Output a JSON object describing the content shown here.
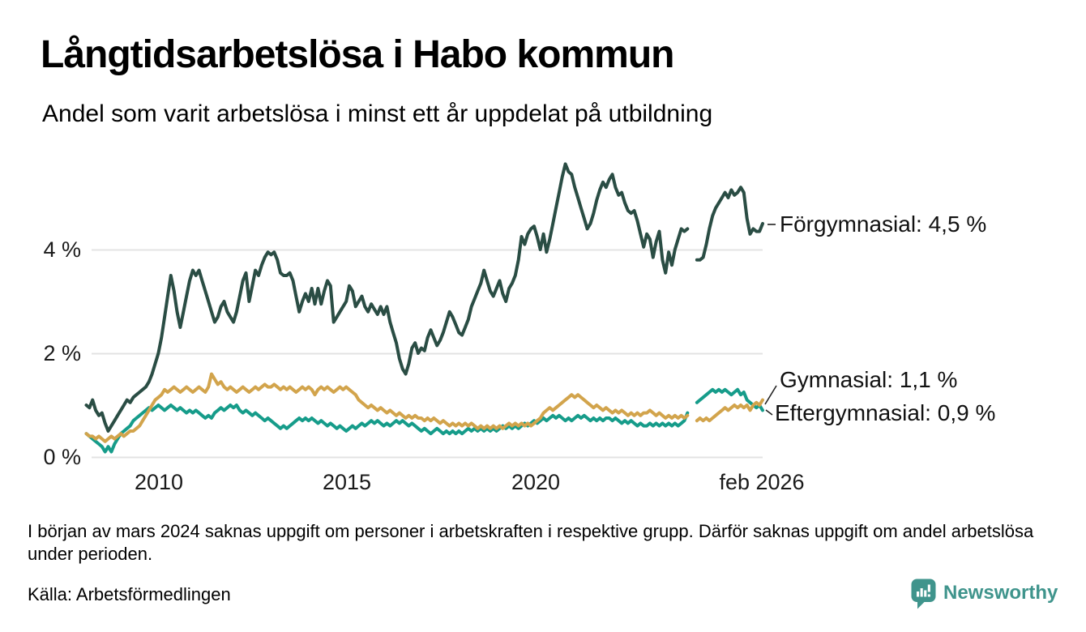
{
  "header": {
    "title": "Långtidsarbetslösa i Habo kommun",
    "subtitle": "Andel som varit arbetslösa i minst ett år uppdelat på utbildning"
  },
  "chart_data": {
    "type": "line",
    "title": "Långtidsarbetslösa i Habo kommun",
    "subtitle": "Andel som varit arbetslösa i minst ett år uppdelat på utbildning",
    "unit": "%",
    "x_unit": "month",
    "x_start": "2008-02",
    "x_end": "2026-02",
    "x_range": [
      2008.0833,
      2026.0833
    ],
    "x_step_months": 1,
    "ylim": [
      0,
      5.8
    ],
    "grid": "horizontal-only",
    "gap_note": "No data for March–April 2024",
    "y_ticks": [
      {
        "value": 4,
        "label": "4 %"
      },
      {
        "value": 2,
        "label": "2 %"
      },
      {
        "value": 0,
        "label": "0 %"
      }
    ],
    "x_ticks": [
      {
        "value": 2010,
        "label": "2010"
      },
      {
        "value": 2015,
        "label": "2015"
      },
      {
        "value": 2020,
        "label": "2020"
      },
      {
        "value": 2026.0833,
        "label": "feb 2026"
      }
    ],
    "series": [
      {
        "id": "eftergymnasial",
        "name": "Eftergymnasial",
        "color": "#169c8a",
        "width": 4,
        "end_label": "Eftergymnasial: 0,9 %",
        "end_value": 0.9,
        "values": [
          0.45,
          0.4,
          0.35,
          0.3,
          0.25,
          0.2,
          0.1,
          0.2,
          0.1,
          0.25,
          0.35,
          0.45,
          0.5,
          0.55,
          0.6,
          0.7,
          0.75,
          0.8,
          0.85,
          0.9,
          0.95,
          0.9,
          0.95,
          1.0,
          0.95,
          0.9,
          0.95,
          1.0,
          0.95,
          0.9,
          0.95,
          0.9,
          0.85,
          0.9,
          0.85,
          0.9,
          0.85,
          0.8,
          0.75,
          0.8,
          0.75,
          0.85,
          0.9,
          0.95,
          0.9,
          0.95,
          1.0,
          0.95,
          1.0,
          0.9,
          0.85,
          0.9,
          0.85,
          0.8,
          0.85,
          0.8,
          0.75,
          0.7,
          0.75,
          0.7,
          0.65,
          0.6,
          0.55,
          0.6,
          0.55,
          0.6,
          0.65,
          0.7,
          0.75,
          0.7,
          0.75,
          0.7,
          0.75,
          0.7,
          0.65,
          0.7,
          0.65,
          0.6,
          0.65,
          0.6,
          0.55,
          0.6,
          0.55,
          0.5,
          0.55,
          0.6,
          0.55,
          0.6,
          0.65,
          0.6,
          0.65,
          0.7,
          0.65,
          0.7,
          0.65,
          0.6,
          0.65,
          0.6,
          0.65,
          0.7,
          0.65,
          0.7,
          0.65,
          0.6,
          0.65,
          0.6,
          0.55,
          0.5,
          0.55,
          0.5,
          0.45,
          0.5,
          0.55,
          0.5,
          0.45,
          0.5,
          0.45,
          0.5,
          0.45,
          0.5,
          0.45,
          0.5,
          0.55,
          0.5,
          0.55,
          0.5,
          0.55,
          0.5,
          0.55,
          0.5,
          0.55,
          0.5,
          0.55,
          0.6,
          0.55,
          0.6,
          0.55,
          0.6,
          0.55,
          0.6,
          0.65,
          0.6,
          0.65,
          0.7,
          0.65,
          0.7,
          0.75,
          0.7,
          0.75,
          0.8,
          0.75,
          0.8,
          0.75,
          0.7,
          0.75,
          0.7,
          0.75,
          0.8,
          0.75,
          0.8,
          0.75,
          0.7,
          0.75,
          0.7,
          0.75,
          0.7,
          0.75,
          0.75,
          0.7,
          0.75,
          0.7,
          0.65,
          0.7,
          0.65,
          0.7,
          0.65,
          0.6,
          0.65,
          0.6,
          0.6,
          0.65,
          0.6,
          0.65,
          0.6,
          0.65,
          0.6,
          0.65,
          0.6,
          0.65,
          0.6,
          0.65,
          0.7,
          0.85,
          null,
          null,
          1.05,
          1.1,
          1.15,
          1.2,
          1.25,
          1.3,
          1.25,
          1.3,
          1.25,
          1.3,
          1.25,
          1.2,
          1.25,
          1.3,
          1.2,
          1.25,
          1.1,
          1.05,
          1.0,
          0.95,
          1.0,
          0.9
        ]
      },
      {
        "id": "gymnasial",
        "name": "Gymnasial",
        "color": "#d2a44c",
        "width": 4,
        "end_label": "Gymnasial: 1,1 %",
        "end_value": 1.1,
        "values": [
          0.45,
          0.4,
          0.4,
          0.35,
          0.4,
          0.35,
          0.3,
          0.35,
          0.4,
          0.35,
          0.4,
          0.45,
          0.4,
          0.45,
          0.5,
          0.5,
          0.55,
          0.6,
          0.7,
          0.8,
          0.9,
          1.0,
          1.1,
          1.15,
          1.2,
          1.3,
          1.25,
          1.3,
          1.35,
          1.3,
          1.25,
          1.3,
          1.35,
          1.3,
          1.25,
          1.3,
          1.35,
          1.3,
          1.25,
          1.35,
          1.6,
          1.5,
          1.4,
          1.45,
          1.35,
          1.3,
          1.35,
          1.3,
          1.25,
          1.3,
          1.35,
          1.3,
          1.25,
          1.3,
          1.35,
          1.3,
          1.35,
          1.4,
          1.35,
          1.35,
          1.4,
          1.35,
          1.3,
          1.35,
          1.3,
          1.35,
          1.3,
          1.25,
          1.3,
          1.35,
          1.3,
          1.35,
          1.3,
          1.2,
          1.3,
          1.35,
          1.3,
          1.35,
          1.3,
          1.25,
          1.3,
          1.35,
          1.3,
          1.35,
          1.3,
          1.25,
          1.2,
          1.1,
          1.05,
          1.0,
          0.95,
          1.0,
          0.95,
          0.9,
          0.95,
          0.9,
          0.85,
          0.9,
          0.85,
          0.8,
          0.85,
          0.8,
          0.75,
          0.8,
          0.75,
          0.8,
          0.75,
          0.75,
          0.7,
          0.75,
          0.7,
          0.75,
          0.7,
          0.65,
          0.7,
          0.65,
          0.6,
          0.65,
          0.6,
          0.65,
          0.6,
          0.65,
          0.6,
          0.65,
          0.6,
          0.55,
          0.6,
          0.55,
          0.6,
          0.55,
          0.6,
          0.55,
          0.6,
          0.55,
          0.6,
          0.65,
          0.6,
          0.65,
          0.6,
          0.65,
          0.6,
          0.65,
          0.6,
          0.65,
          0.7,
          0.75,
          0.85,
          0.9,
          0.95,
          0.9,
          0.95,
          1.0,
          1.05,
          1.1,
          1.15,
          1.2,
          1.15,
          1.2,
          1.15,
          1.1,
          1.05,
          1.0,
          0.95,
          1.0,
          0.95,
          0.9,
          0.95,
          0.9,
          0.85,
          0.9,
          0.85,
          0.9,
          0.85,
          0.8,
          0.85,
          0.8,
          0.85,
          0.8,
          0.85,
          0.85,
          0.9,
          0.85,
          0.8,
          0.85,
          0.8,
          0.75,
          0.8,
          0.75,
          0.8,
          0.75,
          0.8,
          0.75,
          0.8,
          null,
          null,
          0.7,
          0.75,
          0.7,
          0.75,
          0.7,
          0.75,
          0.8,
          0.85,
          0.9,
          0.95,
          0.9,
          0.95,
          1.0,
          0.95,
          1.0,
          0.95,
          1.0,
          0.9,
          1.0,
          1.05,
          1.0,
          1.1
        ]
      },
      {
        "id": "forgymnasial",
        "name": "Förgymnasial",
        "color": "#2a4d44",
        "width": 4,
        "end_label": "Förgymnasial: 4,5 %",
        "end_value": 4.5,
        "values": [
          1.0,
          0.95,
          1.1,
          0.9,
          0.8,
          0.85,
          0.65,
          0.5,
          0.6,
          0.7,
          0.8,
          0.9,
          1.0,
          1.1,
          1.05,
          1.15,
          1.2,
          1.25,
          1.3,
          1.35,
          1.45,
          1.6,
          1.8,
          2.0,
          2.3,
          2.7,
          3.1,
          3.5,
          3.2,
          2.8,
          2.5,
          2.8,
          3.1,
          3.4,
          3.6,
          3.5,
          3.6,
          3.4,
          3.2,
          3.0,
          2.8,
          2.6,
          2.7,
          2.9,
          3.0,
          2.8,
          2.7,
          2.6,
          2.8,
          3.1,
          3.4,
          3.55,
          3.0,
          3.3,
          3.6,
          3.5,
          3.7,
          3.85,
          3.95,
          3.9,
          3.95,
          3.8,
          3.55,
          3.5,
          3.5,
          3.55,
          3.4,
          3.1,
          2.8,
          3.0,
          3.15,
          3.0,
          3.25,
          2.95,
          3.25,
          2.95,
          3.2,
          3.4,
          3.3,
          2.6,
          2.7,
          2.8,
          2.9,
          3.0,
          3.3,
          3.2,
          2.9,
          3.0,
          3.1,
          2.9,
          2.8,
          2.95,
          2.85,
          2.75,
          2.9,
          2.75,
          2.9,
          2.6,
          2.4,
          2.2,
          1.9,
          1.7,
          1.6,
          1.8,
          2.1,
          2.2,
          2.0,
          2.1,
          2.05,
          2.3,
          2.45,
          2.3,
          2.15,
          2.25,
          2.4,
          2.6,
          2.8,
          2.7,
          2.55,
          2.4,
          2.35,
          2.5,
          2.65,
          2.9,
          3.05,
          3.2,
          3.35,
          3.6,
          3.4,
          3.2,
          3.1,
          3.25,
          3.4,
          3.15,
          3.0,
          3.25,
          3.35,
          3.5,
          3.8,
          4.25,
          4.1,
          4.3,
          4.4,
          4.45,
          4.25,
          4.0,
          4.3,
          3.95,
          4.2,
          4.5,
          4.8,
          5.1,
          5.4,
          5.65,
          5.5,
          5.45,
          5.2,
          5.0,
          4.8,
          4.6,
          4.4,
          4.5,
          4.7,
          4.95,
          5.15,
          5.3,
          5.2,
          5.35,
          5.45,
          5.2,
          5.05,
          5.1,
          4.9,
          4.75,
          4.7,
          4.75,
          4.55,
          4.3,
          4.05,
          4.3,
          4.2,
          3.85,
          4.15,
          4.35,
          3.8,
          3.55,
          3.95,
          3.7,
          4.0,
          4.2,
          4.4,
          4.35,
          4.4,
          null,
          null,
          3.8,
          3.8,
          3.85,
          4.1,
          4.4,
          4.65,
          4.8,
          4.9,
          5.0,
          5.1,
          5.0,
          5.15,
          5.05,
          5.1,
          5.2,
          5.1,
          4.6,
          4.3,
          4.4,
          4.35,
          4.35,
          4.5
        ]
      }
    ],
    "colors": {
      "grid": "#e3e3e3",
      "text": "#1a1a1a"
    }
  },
  "footer": {
    "footnote": "I början av mars 2024 saknas uppgift om personer i arbetskraften i respektive grupp. Därför saknas uppgift om andel arbetslösa under perioden.",
    "source": "Källa: Arbetsförmedlingen",
    "logo_text": "Newsworthy",
    "logo_color": "#3f948c"
  }
}
